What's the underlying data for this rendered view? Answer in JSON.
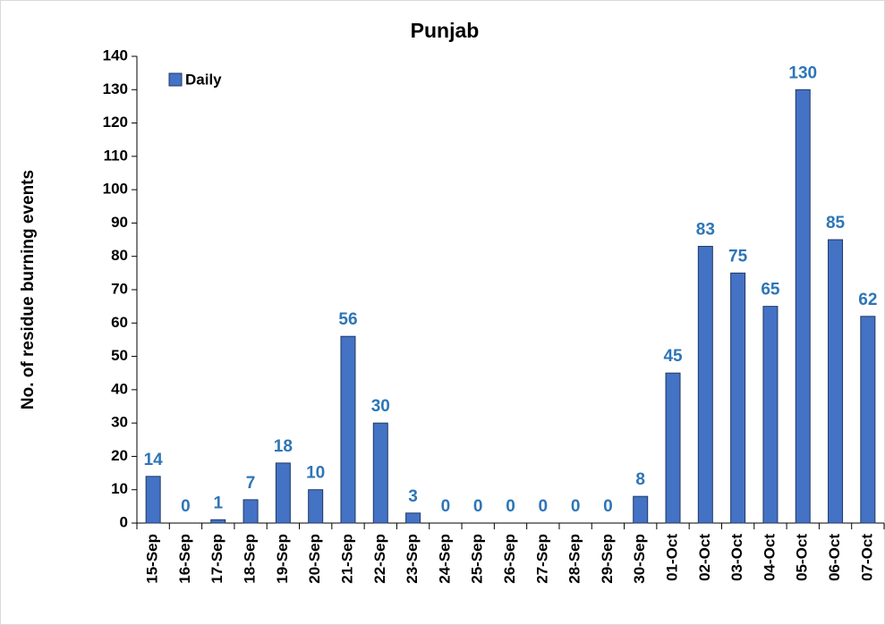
{
  "chart_data": {
    "type": "bar",
    "title": "Punjab",
    "y_label": "No. of residue burning events",
    "categories": [
      "15-Sep",
      "16-Sep",
      "17-Sep",
      "18-Sep",
      "19-Sep",
      "20-Sep",
      "21-Sep",
      "22-Sep",
      "23-Sep",
      "24-Sep",
      "25-Sep",
      "26-Sep",
      "27-Sep",
      "28-Sep",
      "29-Sep",
      "30-Sep",
      "01-Oct",
      "02-Oct",
      "03-Oct",
      "04-Oct",
      "05-Oct",
      "06-Oct",
      "07-Oct"
    ],
    "series": [
      {
        "name": "Daily",
        "color": "#4472c4",
        "values": [
          14,
          0,
          1,
          7,
          18,
          10,
          56,
          30,
          3,
          0,
          0,
          0,
          0,
          0,
          0,
          8,
          45,
          83,
          75,
          65,
          130,
          85,
          62
        ]
      }
    ],
    "ylim": [
      0,
      140
    ],
    "yticks": [
      0,
      10,
      20,
      30,
      40,
      50,
      60,
      70,
      80,
      90,
      100,
      110,
      120,
      130,
      140
    ],
    "grid": false,
    "legend": "top-left",
    "value_label_color": "#2e75b6"
  }
}
